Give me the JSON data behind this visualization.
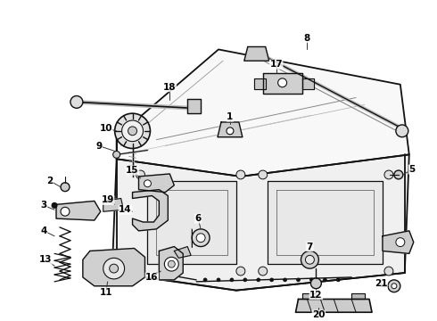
{
  "bg_color": "#ffffff",
  "line_color": "#111111",
  "fig_width": 4.9,
  "fig_height": 3.6,
  "dpi": 100
}
